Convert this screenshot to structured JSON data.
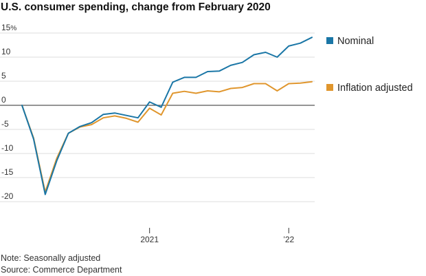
{
  "chart_data": {
    "type": "line",
    "title": "U.S. consumer spending, change from February 2020",
    "xlabel": "",
    "ylabel": "",
    "y_unit": "%",
    "ylim": [
      -20,
      15
    ],
    "y_ticks": [
      15,
      10,
      5,
      0,
      -5,
      -10,
      -15,
      -20
    ],
    "x_ticks": [
      {
        "month": "2021-01",
        "label": "2021"
      },
      {
        "month": "2022-01",
        "label": "’22"
      }
    ],
    "grid": "horizontal",
    "legend": "right",
    "x": [
      "2020-02",
      "2020-03",
      "2020-04",
      "2020-05",
      "2020-06",
      "2020-07",
      "2020-08",
      "2020-09",
      "2020-10",
      "2020-11",
      "2020-12",
      "2021-01",
      "2021-02",
      "2021-03",
      "2021-04",
      "2021-05",
      "2021-06",
      "2021-07",
      "2021-08",
      "2021-09",
      "2021-10",
      "2021-11",
      "2021-12",
      "2022-01",
      "2022-02",
      "2022-03"
    ],
    "series": [
      {
        "name": "Nominal",
        "color": "#1a76a6",
        "values": [
          0,
          -7.0,
          -18.5,
          -11.5,
          -5.8,
          -4.4,
          -3.6,
          -1.9,
          -1.6,
          -2.1,
          -2.6,
          0.7,
          -0.4,
          4.8,
          5.8,
          5.8,
          7.0,
          7.1,
          8.3,
          8.9,
          10.5,
          11.0,
          10.0,
          12.3,
          12.9,
          14.1
        ]
      },
      {
        "name": "Inflation adjusted",
        "color": "#e0962d",
        "values": [
          0,
          -6.8,
          -18.0,
          -11.0,
          -5.8,
          -4.5,
          -4.0,
          -2.6,
          -2.2,
          -2.7,
          -3.5,
          -0.6,
          -2.0,
          2.5,
          2.9,
          2.5,
          3.0,
          2.8,
          3.5,
          3.7,
          4.5,
          4.5,
          3.0,
          4.5,
          4.6,
          4.9
        ]
      }
    ]
  },
  "notes": {
    "note": "Note: Seasonally adjusted",
    "source": "Source: Commerce Department"
  },
  "colors": {
    "grid": "#dcdcdc",
    "zero_line": "#555555"
  }
}
